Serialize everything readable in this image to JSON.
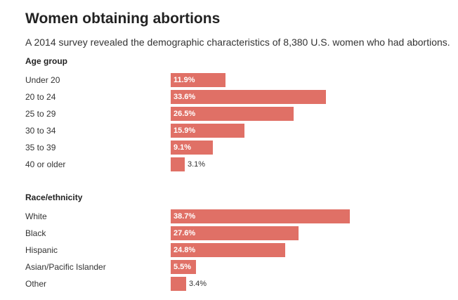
{
  "chart_data": {
    "type": "bar",
    "orientation": "horizontal",
    "title": "Women obtaining abortions",
    "subtitle": "A 2014 survey revealed the demographic characteristics of 8,380 U.S. women who had abortions.",
    "unit": "%",
    "bar_color": "#e07066",
    "xlim": [
      0,
      38.7
    ],
    "groups": [
      {
        "name": "Age group",
        "categories": [
          "Under 20",
          "20 to 24",
          "25 to 29",
          "30 to 34",
          "35 to 39",
          "40 or older"
        ],
        "values": [
          11.9,
          33.6,
          26.5,
          15.9,
          9.1,
          3.1
        ],
        "labels": [
          "11.9%",
          "33.6%",
          "26.5%",
          "15.9%",
          "9.1%",
          "3.1%"
        ]
      },
      {
        "name": "Race/ethnicity",
        "categories": [
          "White",
          "Black",
          "Hispanic",
          "Asian/Pacific Islander",
          "Other"
        ],
        "values": [
          38.7,
          27.6,
          24.8,
          5.5,
          3.4
        ],
        "labels": [
          "38.7%",
          "27.6%",
          "24.8%",
          "5.5%",
          "3.4%"
        ]
      }
    ]
  }
}
